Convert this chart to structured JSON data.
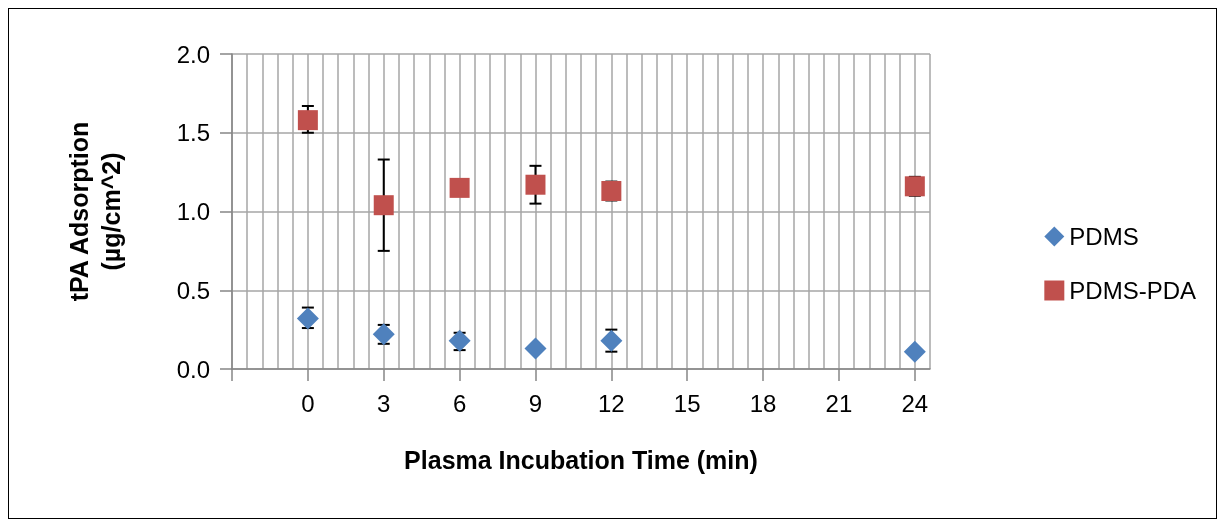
{
  "chart_data": {
    "type": "scatter",
    "xlabel": "Plasma Incubation Time (min)",
    "ylabel": "tPA Adsorption\n(µg/cm^2)",
    "xlim": [
      -3,
      24.6
    ],
    "xticks": [
      {
        "value": -3,
        "label": null
      },
      0,
      3,
      6,
      9,
      12,
      15,
      18,
      21,
      24
    ],
    "ylim": [
      0,
      2.0
    ],
    "yticks": [
      {
        "value": 0,
        "label": "0.0"
      },
      {
        "value": 0.5,
        "label": "0.5"
      },
      {
        "value": 1,
        "label": "1.0"
      },
      {
        "value": 1.5,
        "label": "1.5"
      },
      {
        "value": 2,
        "label": "2.0"
      }
    ],
    "grid": true,
    "legend": "right",
    "series": [
      {
        "name": "PDMS",
        "color": "#4f81bd",
        "marker": "diamond",
        "x": [
          0,
          3,
          6,
          9,
          12,
          24
        ],
        "values": [
          0.32,
          0.22,
          0.18,
          0.13,
          0.18,
          0.11
        ],
        "errors": [
          [
            0.26,
            0.39
          ],
          [
            0.16,
            0.28
          ],
          [
            0.12,
            0.23
          ],
          null,
          [
            0.11,
            0.25
          ],
          null
        ]
      },
      {
        "name": "PDMS-PDA",
        "color": "#c0504d",
        "marker": "square",
        "x": [
          0,
          3,
          6,
          9,
          12,
          24
        ],
        "values": [
          1.58,
          1.04,
          1.15,
          1.17,
          1.13,
          1.16
        ],
        "errors": [
          [
            1.5,
            1.67
          ],
          [
            0.75,
            1.33
          ],
          null,
          [
            1.05,
            1.29
          ],
          [
            1.07,
            1.19
          ],
          [
            1.1,
            1.22
          ]
        ]
      }
    ]
  }
}
